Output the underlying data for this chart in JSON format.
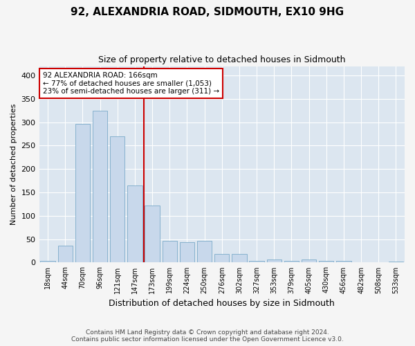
{
  "title": "92, ALEXANDRIA ROAD, SIDMOUTH, EX10 9HG",
  "subtitle": "Size of property relative to detached houses in Sidmouth",
  "xlabel": "Distribution of detached houses by size in Sidmouth",
  "ylabel": "Number of detached properties",
  "bar_color": "#c8d8eb",
  "bar_edge_color": "#7aaac8",
  "background_color": "#dce6f0",
  "fig_background": "#f5f5f5",
  "grid_color": "#ffffff",
  "categories": [
    "18sqm",
    "44sqm",
    "70sqm",
    "96sqm",
    "121sqm",
    "147sqm",
    "173sqm",
    "199sqm",
    "224sqm",
    "250sqm",
    "276sqm",
    "302sqm",
    "327sqm",
    "353sqm",
    "379sqm",
    "405sqm",
    "430sqm",
    "456sqm",
    "482sqm",
    "508sqm",
    "533sqm"
  ],
  "values": [
    3,
    36,
    297,
    325,
    270,
    165,
    122,
    46,
    44,
    46,
    18,
    18,
    3,
    7,
    3,
    7,
    3,
    3,
    1,
    0,
    2
  ],
  "vline_x": 6.0,
  "vline_color": "#cc0000",
  "annotation_text": "92 ALEXANDRIA ROAD: 166sqm\n← 77% of detached houses are smaller (1,053)\n23% of semi-detached houses are larger (311) →",
  "annotation_box_color": "#ffffff",
  "annotation_box_edge": "#cc0000",
  "footnote": "Contains HM Land Registry data © Crown copyright and database right 2024.\nContains public sector information licensed under the Open Government Licence v3.0.",
  "ylim": [
    0,
    420
  ],
  "yticks": [
    0,
    50,
    100,
    150,
    200,
    250,
    300,
    350,
    400
  ]
}
